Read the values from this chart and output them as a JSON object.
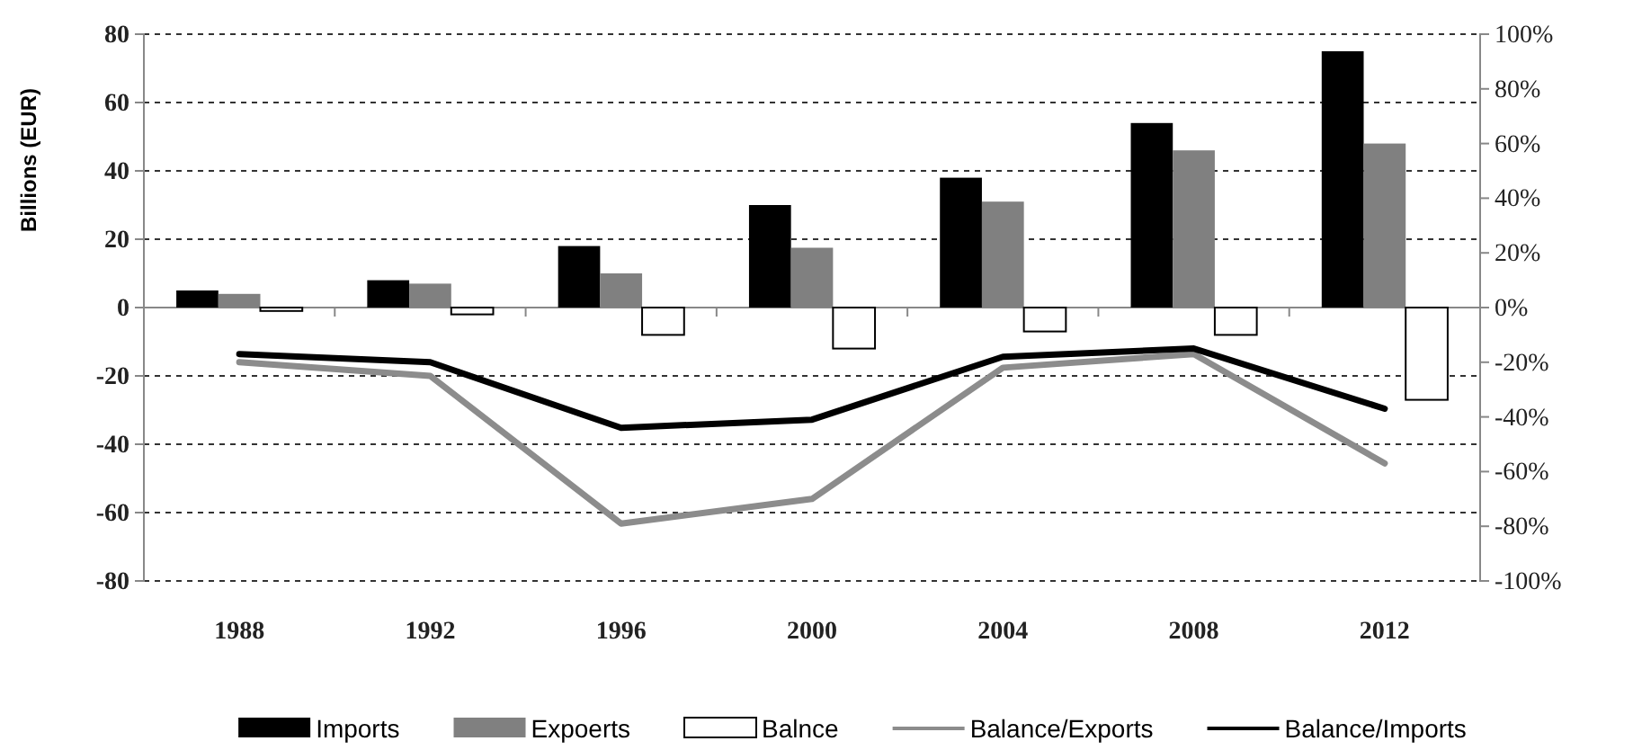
{
  "chart_data": {
    "type": "bar",
    "ylabel": "Billions (EUR)",
    "categories": [
      "1988",
      "1992",
      "1996",
      "2000",
      "2004",
      "2008",
      "2012"
    ],
    "series": [
      {
        "name": "Imports",
        "color": "#000000",
        "values": [
          5,
          8,
          18,
          30,
          38,
          54,
          75
        ]
      },
      {
        "name": "Expoerts",
        "color": "#808080",
        "values": [
          4,
          7,
          10,
          17.5,
          31,
          46,
          48
        ]
      },
      {
        "name": "Balnce",
        "color": "#ffffff",
        "values": [
          -1,
          -2,
          -8,
          -12,
          -7,
          -8,
          -27
        ]
      },
      {
        "name": "Balance/Exports",
        "type": "line",
        "axis": "y2",
        "color": "#8c8c8c",
        "values": [
          -20,
          -25,
          -79,
          -70,
          -22,
          -17,
          -57
        ]
      },
      {
        "name": "Balance/Imports",
        "type": "line",
        "axis": "y2",
        "color": "#000000",
        "values": [
          -17,
          -20,
          -44,
          -41,
          -18,
          -15,
          -37
        ]
      }
    ],
    "ylim": [
      -80,
      80
    ],
    "yticks": [
      -80,
      -60,
      -40,
      -20,
      0,
      20,
      40,
      60,
      80
    ],
    "y2lim": [
      -100,
      100
    ],
    "y2ticks": [
      {
        "value": -100,
        "label": "-100%"
      },
      {
        "value": -80,
        "label": "-80%"
      },
      {
        "value": -60,
        "label": "-60%"
      },
      {
        "value": -40,
        "label": "-40%"
      },
      {
        "value": -20,
        "label": "-20%"
      },
      {
        "value": 0,
        "label": "0%"
      },
      {
        "value": 20,
        "label": "20%"
      },
      {
        "value": 40,
        "label": "40%"
      },
      {
        "value": 60,
        "label": "60%"
      },
      {
        "value": 80,
        "label": "80%"
      },
      {
        "value": 100,
        "label": "100%"
      }
    ],
    "grid": "y",
    "legend": "bottom",
    "marker": "none",
    "line_style": "solid"
  }
}
